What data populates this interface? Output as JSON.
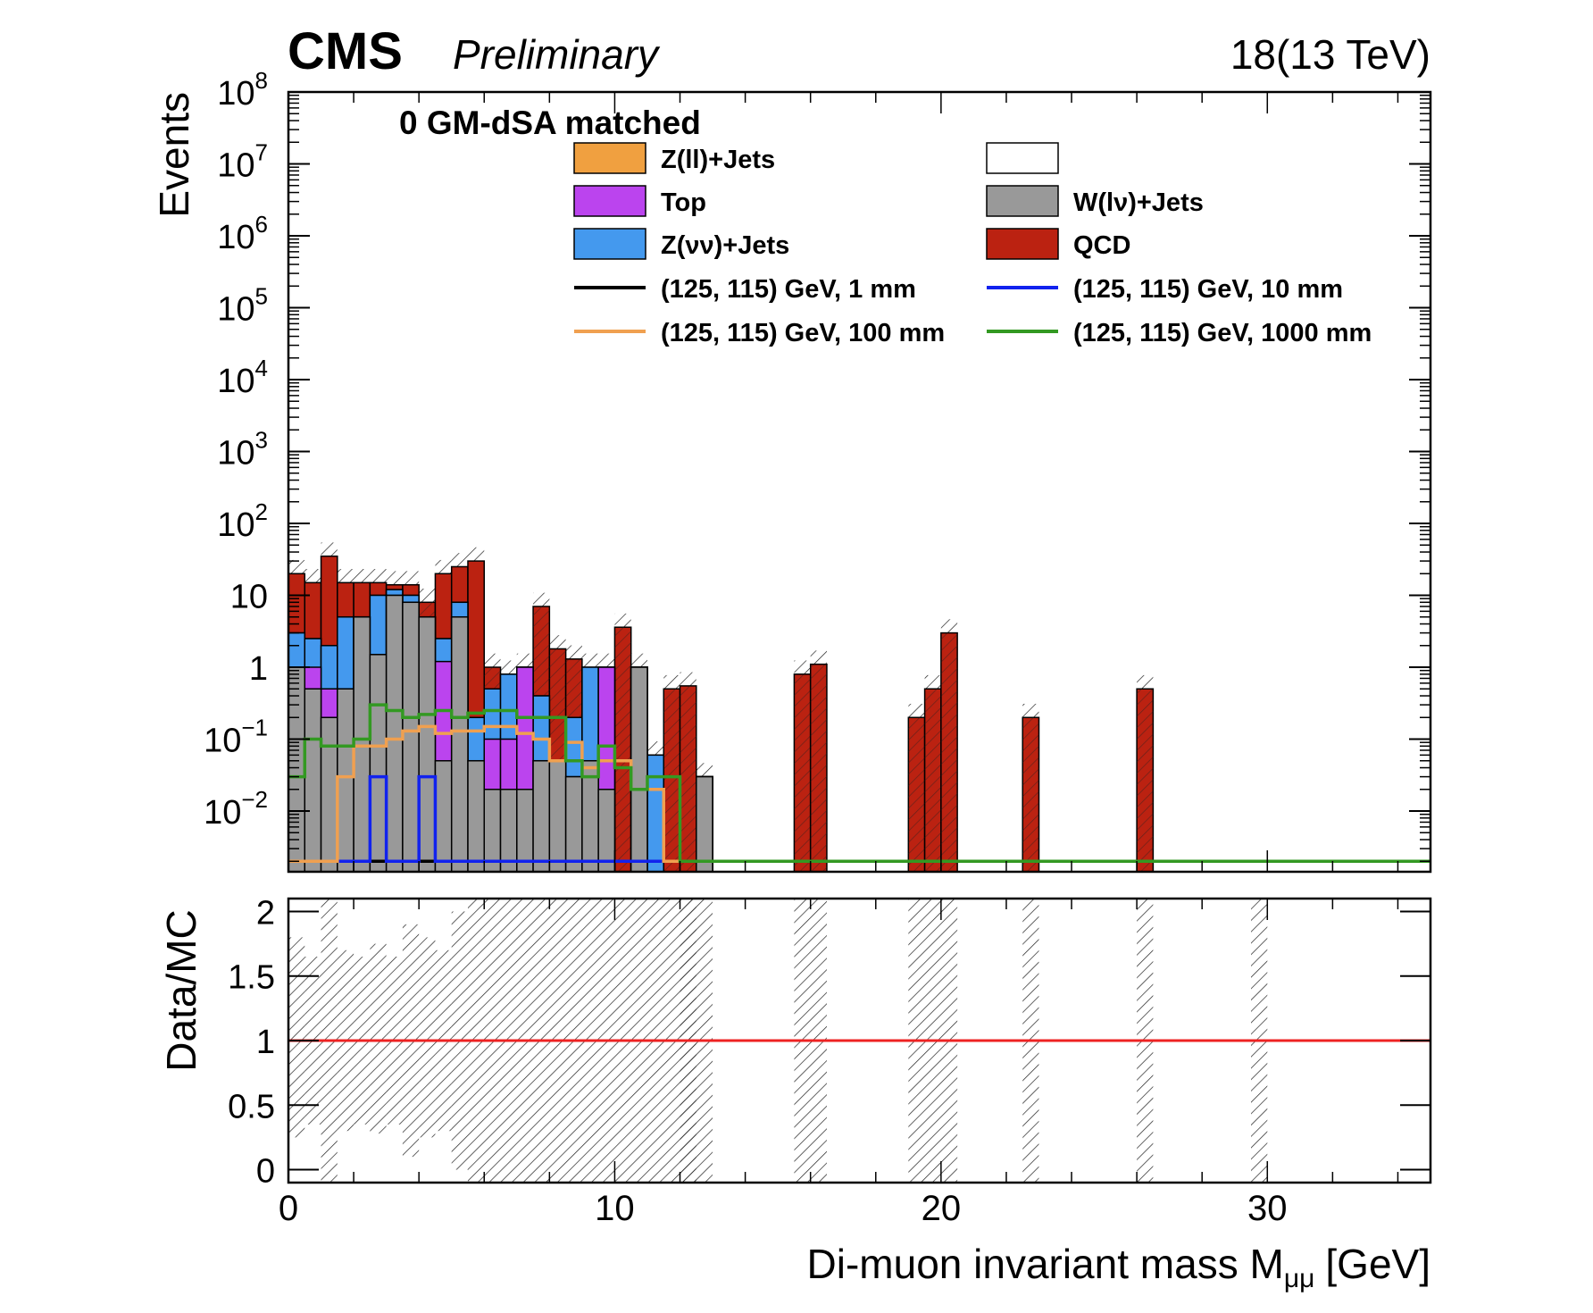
{
  "header": {
    "experiment": "CMS",
    "status": "Preliminary",
    "lumi": "18(13 TeV)"
  },
  "annotation": "0 GM-dSA matched",
  "legend": {
    "position": "top",
    "columns": 2,
    "items": [
      {
        "kind": "fill",
        "label": "Z(ll)+Jets",
        "color": "#f0a040"
      },
      {
        "kind": "fill",
        "label": "",
        "color": "#ffffff"
      },
      {
        "kind": "fill",
        "label": "Top",
        "color": "#bb44ee"
      },
      {
        "kind": "fill",
        "label": "W(lν)+Jets",
        "color": "#999999"
      },
      {
        "kind": "fill",
        "label": "Z(νν)+Jets",
        "color": "#4499ee"
      },
      {
        "kind": "fill",
        "label": "QCD",
        "color": "#bb2211"
      },
      {
        "kind": "line",
        "label": "(125, 115) GeV, 1 mm",
        "color": "#000000"
      },
      {
        "kind": "line",
        "label": "(125, 115) GeV, 10 mm",
        "color": "#1122ee"
      },
      {
        "kind": "line",
        "label": "(125, 115) GeV, 100 mm",
        "color": "#f0a050"
      },
      {
        "kind": "line",
        "label": "(125, 115) GeV, 1000 mm",
        "color": "#339922"
      }
    ]
  },
  "chart_data": [
    {
      "type": "bar",
      "stacked": true,
      "ylabel": "Events",
      "yscale": "log",
      "xlim": [
        0,
        35
      ],
      "ylim": [
        0.002,
        100000000
      ],
      "ytick_values": [
        0.01,
        0.1,
        1,
        10,
        100,
        1000,
        10000,
        100000,
        1000000,
        10000000,
        100000000
      ],
      "ytick_labels": [
        {
          "base": "10",
          "exp": "−2"
        },
        {
          "base": "10",
          "exp": "−1"
        },
        {
          "base": "1",
          "exp": ""
        },
        {
          "base": "10",
          "exp": ""
        },
        {
          "base": "10",
          "exp": "2"
        },
        {
          "base": "10",
          "exp": "3"
        },
        {
          "base": "10",
          "exp": "4"
        },
        {
          "base": "10",
          "exp": "5"
        },
        {
          "base": "10",
          "exp": "6"
        },
        {
          "base": "10",
          "exp": "7"
        },
        {
          "base": "10",
          "exp": "8"
        }
      ],
      "bin_width": 0.5,
      "bin_low_edges": [
        0,
        0.5,
        1,
        1.5,
        2,
        2.5,
        3,
        3.5,
        4,
        4.5,
        5,
        5.5,
        6,
        6.5,
        7,
        7.5,
        8,
        8.5,
        9,
        9.5,
        10,
        10.5,
        11,
        11.5,
        12,
        12.5,
        15.5,
        16,
        19,
        19.5,
        20,
        22.5,
        26
      ],
      "stack_order": [
        "W(lν)+Jets",
        "Top",
        "Z(νν)+Jets",
        "QCD"
      ],
      "stack_cumulative_tops": {
        "W(lν)+Jets": [
          1,
          0.5,
          0.2,
          0.5,
          5,
          1.5,
          10,
          8,
          5,
          0.05,
          5,
          0.05,
          0.02,
          0.02,
          0.02,
          0.05,
          0.05,
          0.03,
          0.05,
          0.02,
          0.002,
          1,
          0.002,
          0.002,
          0.002,
          0.03,
          0.002,
          0.002,
          0.002,
          0.002,
          0.002,
          0.002,
          0.002
        ],
        "Top": [
          1,
          1,
          0.5,
          0.5,
          5,
          1.5,
          10,
          8,
          5,
          1.2,
          5,
          0.05,
          0.1,
          0.1,
          1,
          0.05,
          0.05,
          0.03,
          0.05,
          1,
          0.002,
          1,
          0.002,
          0.002,
          0.002,
          0.03,
          0.002,
          0.002,
          0.002,
          0.002,
          0.002,
          0.002,
          0.002
        ],
        "Z(νν)+Jets": [
          3,
          2.5,
          2,
          5,
          5,
          10,
          12,
          10,
          3,
          2.5,
          8,
          0.2,
          0.5,
          0.8,
          1,
          0.4,
          0.05,
          0.2,
          1,
          1,
          0.002,
          1,
          0.06,
          0.002,
          0.002,
          0.03,
          0.002,
          0.002,
          0.002,
          0.002,
          0.002,
          0.002,
          0.002
        ],
        "QCD": [
          20,
          15,
          35,
          15,
          15,
          15,
          14,
          14,
          8,
          20,
          25,
          30,
          1,
          0.3,
          0.4,
          7,
          1.8,
          1.3,
          0.6,
          0.2,
          3.6,
          1,
          0.06,
          0.5,
          0.55,
          0.03,
          0.8,
          1.1,
          0.2,
          0.5,
          3,
          0.2,
          0.5
        ]
      },
      "signal": [
        {
          "name": "(125, 115) GeV, 1 mm",
          "edges": [
            0,
            0.5,
            1,
            1.5,
            2,
            2.5,
            3,
            3.5,
            4,
            4.5,
            5,
            35
          ],
          "values": [
            0.002,
            0.002,
            0.002,
            0.002,
            0.002,
            0.002,
            0.002,
            0.002,
            0.002,
            0.002,
            0.002
          ]
        },
        {
          "name": "(125, 115) GeV, 10 mm",
          "edges": [
            0,
            2.5,
            3,
            3.5,
            4,
            4.5,
            5,
            35
          ],
          "values": [
            0.002,
            0.03,
            0.002,
            0.002,
            0.03,
            0.002,
            0.002
          ]
        },
        {
          "name": "(125, 115) GeV, 100 mm",
          "edges": [
            0,
            1.5,
            2,
            2.5,
            3,
            3.5,
            4,
            4.5,
            5,
            5.5,
            6,
            6.5,
            7,
            7.5,
            8,
            8.5,
            9,
            9.5,
            10,
            10.5,
            11,
            11.5,
            35
          ],
          "values": [
            0.002,
            0.03,
            0.08,
            0.08,
            0.1,
            0.13,
            0.15,
            0.12,
            0.13,
            0.13,
            0.15,
            0.15,
            0.12,
            0.1,
            0.05,
            0.09,
            0.04,
            0.05,
            0.05,
            0.02,
            0.02,
            0.002
          ]
        },
        {
          "name": "(125, 115) GeV, 1000 mm",
          "edges": [
            0,
            0.5,
            1,
            1.5,
            2,
            2.5,
            3,
            3.5,
            4,
            4.5,
            5,
            5.5,
            6,
            6.5,
            7,
            7.5,
            8,
            8.5,
            9,
            9.5,
            10,
            10.5,
            11,
            11.5,
            12,
            35
          ],
          "values": [
            0.03,
            0.1,
            0.08,
            0.08,
            0.1,
            0.3,
            0.25,
            0.2,
            0.22,
            0.25,
            0.2,
            0.23,
            0.25,
            0.25,
            0.2,
            0.2,
            0.2,
            0.05,
            0.03,
            0.08,
            0.04,
            0.02,
            0.03,
            0.03,
            0.002
          ]
        }
      ],
      "colors": {
        "W(lν)+Jets": "#999999",
        "Top": "#bb44ee",
        "Z(νν)+Jets": "#4499ee",
        "QCD": "#bb2211"
      }
    },
    {
      "type": "line",
      "ylabel": "Data/MC",
      "xlabel": "Di-muon invariant mass",
      "xlabel_symbol": "M",
      "xlabel_subscript": "μμ",
      "xlabel_unit": "[GeV]",
      "xlim": [
        0,
        35
      ],
      "ylim": [
        -0.1,
        2.1
      ],
      "xticks": [
        0,
        10,
        20,
        30
      ],
      "yticks": [
        0,
        0.5,
        1,
        1.5,
        2
      ],
      "ytick_labels": [
        "0",
        "0.5",
        "1",
        "1.5",
        "2"
      ],
      "reference_line": {
        "y": 1,
        "color": "#ee2222"
      },
      "uncertainty_bands": [
        {
          "x0": 0,
          "x1": 0.5,
          "lo": 0.25,
          "hi": 1.8
        },
        {
          "x0": 0.5,
          "x1": 1,
          "lo": 0.35,
          "hi": 1.65
        },
        {
          "x0": 1,
          "x1": 1.5,
          "lo": -0.1,
          "hi": 2.1
        },
        {
          "x0": 1.5,
          "x1": 2,
          "lo": 0.3,
          "hi": 1.7
        },
        {
          "x0": 2,
          "x1": 2.5,
          "lo": 0.35,
          "hi": 1.65
        },
        {
          "x0": 2.5,
          "x1": 3,
          "lo": 0.28,
          "hi": 1.75
        },
        {
          "x0": 3,
          "x1": 3.5,
          "lo": 0.35,
          "hi": 1.65
        },
        {
          "x0": 3.5,
          "x1": 4,
          "lo": 0.1,
          "hi": 1.9
        },
        {
          "x0": 4,
          "x1": 4.5,
          "lo": 0.25,
          "hi": 1.8
        },
        {
          "x0": 4.5,
          "x1": 5,
          "lo": 0.3,
          "hi": 1.7
        },
        {
          "x0": 5,
          "x1": 5.5,
          "lo": 0.0,
          "hi": 2.0
        },
        {
          "x0": 5.5,
          "x1": 12.5,
          "lo": -0.1,
          "hi": 2.1
        },
        {
          "x0": 12,
          "x1": 13,
          "lo": -0.1,
          "hi": 2.1
        },
        {
          "x0": 15.5,
          "x1": 16.5,
          "lo": -0.1,
          "hi": 2.1
        },
        {
          "x0": 19,
          "x1": 20.5,
          "lo": -0.1,
          "hi": 2.1
        },
        {
          "x0": 22.5,
          "x1": 23,
          "lo": -0.1,
          "hi": 2.1
        },
        {
          "x0": 26,
          "x1": 26.5,
          "lo": -0.1,
          "hi": 2.1
        },
        {
          "x0": 29.5,
          "x1": 30,
          "lo": -0.1,
          "hi": 2.1
        }
      ]
    }
  ]
}
